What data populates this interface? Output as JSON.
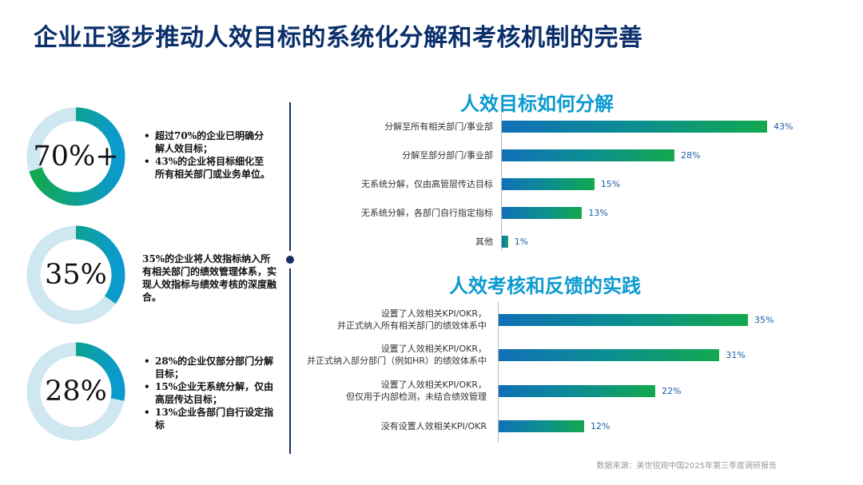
{
  "title": "企业正逐步推动人效目标的系统化分解和考核机制的完善",
  "stats": [
    {
      "label": "70%+",
      "value": 70,
      "bullets": [
        "超过70%的企业已明确分解人效目标；",
        "43%的企业将目标细化至所有相关部门或业务单位。"
      ]
    },
    {
      "label": "35%",
      "value": 35,
      "text": "35%的企业将人效指标纳入所有相关部门的绩效管理体系，实现人效指标与绩效考核的深度融合。"
    },
    {
      "label": "28%",
      "value": 28,
      "bullets": [
        "28%的企业仅部分部门分解目标；",
        "15%企业无系统分解，仅由高层传达目标；",
        "13%企业各部门自行设定指标"
      ]
    }
  ],
  "colors": {
    "title": "#0b2f6b",
    "chart_title": "#0a9ad0",
    "ring_track": "#cfe7f1",
    "ring_start": "#12a84e",
    "ring_end": "#0a9ad0",
    "bar_start": "#1170b8",
    "bar_end": "#12a84e",
    "value_text": "#1a5ea8"
  },
  "chart_data": [
    {
      "type": "bar",
      "title": "人效目标如何分解",
      "categories": [
        "分解至所有相关部门/事业部",
        "分解至部分部门/事业部",
        "无系统分解，仅由高管层传达目标",
        "无系统分解，各部门自行指定指标",
        "其他"
      ],
      "values": [
        43,
        28,
        15,
        13,
        1
      ],
      "value_labels": [
        "43%",
        "28%",
        "15%",
        "13%",
        "1%"
      ],
      "unit": "%",
      "xlim": [
        0,
        43
      ]
    },
    {
      "type": "bar",
      "title": "人效考核和反馈的实践",
      "categories": [
        [
          "设置了人效相关KPI/OKR，",
          "并正式纳入所有相关部门的绩效体系中"
        ],
        [
          "设置了人效相关KPI/OKR，",
          "并正式纳入部分部门（例如HR）的绩效体系中"
        ],
        [
          "设置了人效相关KPI/OKR，",
          "但仅用于内部检测，未结合绩效管理"
        ],
        [
          "没有设置人效相关KPI/OKR"
        ]
      ],
      "values": [
        35,
        31,
        22,
        12
      ],
      "value_labels": [
        "35%",
        "31%",
        "22%",
        "12%"
      ],
      "unit": "%",
      "xlim": [
        0,
        35
      ]
    }
  ],
  "source": "数据来源：美世锐观中国2025年第三季度调研报告"
}
